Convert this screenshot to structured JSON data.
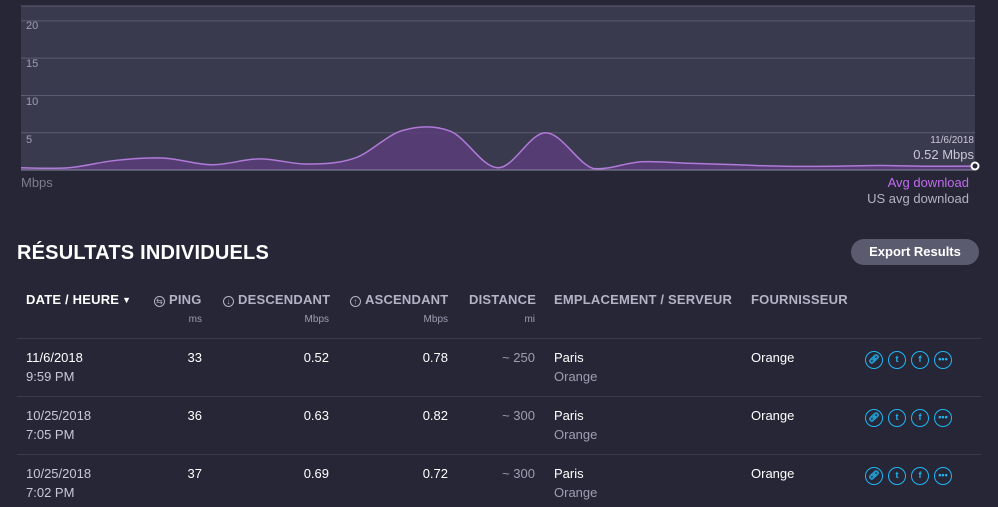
{
  "chart": {
    "y_ticks": [
      "20",
      "15",
      "10",
      "5"
    ],
    "unit": "Mbps",
    "end_date": "11/6/2018",
    "end_value": "0.52 Mbps",
    "legend_avg": "Avg download",
    "legend_us": "US avg download",
    "colors": {
      "line": "#b07ad8",
      "fill": "#5a3d7a",
      "background": "#3a3a4e"
    }
  },
  "chart_data": {
    "type": "area",
    "ylim": [
      0,
      22
    ],
    "ylabel": "Mbps",
    "grid": true,
    "x": [
      0,
      5,
      10,
      15,
      20,
      25,
      30,
      35,
      40,
      45,
      50,
      55,
      60,
      65,
      70,
      75,
      80,
      85,
      90,
      95,
      100
    ],
    "values": [
      0.3,
      0.3,
      1.3,
      1.6,
      0.7,
      1.5,
      0.8,
      1.6,
      5.3,
      5.2,
      0.3,
      5.0,
      0.2,
      1.1,
      0.9,
      0.7,
      0.5,
      0.5,
      0.6,
      0.5,
      0.52
    ]
  },
  "section": {
    "title": "RÉSULTATS INDIVIDUELS",
    "export_label": "Export Results"
  },
  "table": {
    "headers": {
      "date": "DATE / HEURE",
      "ping": "PING",
      "down": "DESCENDANT",
      "up": "ASCENDANT",
      "distance": "DISTANCE",
      "location": "EMPLACEMENT / SERVEUR",
      "provider": "FOURNISSEUR"
    },
    "units": {
      "ping": "ms",
      "down": "Mbps",
      "up": "Mbps",
      "distance": "mi"
    },
    "rows": [
      {
        "date": "11/6/2018",
        "time": "9:59 PM",
        "ping": "33",
        "down": "0.52",
        "up": "0.78",
        "distance": "~ 250",
        "city": "Paris",
        "server": "Orange",
        "provider": "Orange"
      },
      {
        "date": "10/25/2018",
        "time": "7:05 PM",
        "ping": "36",
        "down": "0.63",
        "up": "0.82",
        "distance": "~ 300",
        "city": "Paris",
        "server": "Orange",
        "provider": "Orange"
      },
      {
        "date": "10/25/2018",
        "time": "7:02 PM",
        "ping": "37",
        "down": "0.69",
        "up": "0.72",
        "distance": "~ 300",
        "city": "Paris",
        "server": "Orange",
        "provider": "Orange"
      }
    ]
  }
}
